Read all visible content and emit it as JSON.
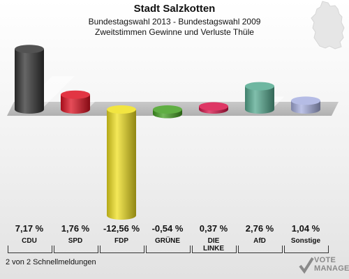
{
  "header": {
    "title": "Stadt Salzkotten",
    "subtitle1": "Bundestagswahl 2013 - Bundestagswahl 2009",
    "subtitle2": "Zweitstimmen Gewinne und Verluste Thüle"
  },
  "footer": {
    "text": "2 von 2 Schnellmeldungen"
  },
  "logo": {
    "line1": "VOTE",
    "line2": "MANAGER"
  },
  "chart_data": {
    "type": "bar",
    "categories": [
      "CDU",
      "SPD",
      "FDP",
      "GRÜNE",
      "DIE LINKE",
      "AfD",
      "Sonstige"
    ],
    "values": [
      7.17,
      1.76,
      -12.56,
      -0.54,
      0.37,
      2.76,
      1.04
    ],
    "value_labels": [
      "7,17 %",
      "1,76 %",
      "-12,56 %",
      "-0,54 %",
      "0,37 %",
      "2,76 %",
      "1,04 %"
    ],
    "label_lines": [
      [
        "CDU"
      ],
      [
        "SPD"
      ],
      [
        "FDP"
      ],
      [
        "GRÜNE"
      ],
      [
        "DIE",
        "LINKE"
      ],
      [
        "AfD"
      ],
      [
        "Sonstige"
      ]
    ],
    "colors": [
      "#333333",
      "#dd1122",
      "#f0e020",
      "#44a022",
      "#d8144a",
      "#55aa90",
      "#a8b0e0"
    ],
    "baseline": 0
  }
}
